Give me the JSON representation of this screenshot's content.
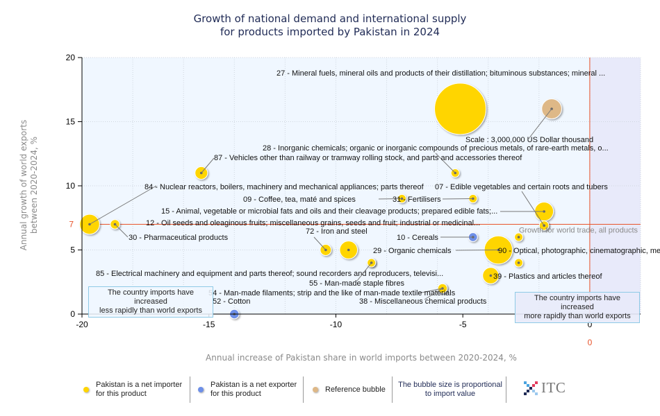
{
  "title_lines": [
    "Growth of national demand and international supply",
    "for products imported by Pakistan in 2024"
  ],
  "chart_data": {
    "type": "scatter",
    "subtype": "bubble",
    "title": "Growth of national demand and international supply for products imported by Pakistan in 2024",
    "xlabel": "Annual increase of Pakistan share in world imports between 2020-2024, %",
    "ylabel_lines": [
      "Annual growth of world exports",
      "between 2020-2024, %"
    ],
    "xlim": [
      -20,
      2
    ],
    "ylim": [
      0,
      20
    ],
    "xticks": [
      -20,
      -15,
      -10,
      -5,
      0
    ],
    "yticks": [
      0,
      5,
      10,
      15,
      20
    ],
    "grid": true,
    "reference_lines": {
      "x": {
        "value": 0,
        "label": "0",
        "color": "#e8532a"
      },
      "y": {
        "value": 7,
        "label": "7",
        "color": "#e8532a",
        "text": "Growth for world trade, all products"
      }
    },
    "colors": {
      "net_importer": "#ffd500",
      "net_exporter": "#6d8fe8",
      "reference": "#deb887",
      "ref_line": "#e8532a"
    },
    "scale_note": "Scale : 3,000,000 US Dollar thousand",
    "quadrant_notes": {
      "left": [
        "The country imports have increased",
        "less rapidly than world exports"
      ],
      "right": [
        "The country imports have increased",
        "more rapidly than world exports"
      ]
    },
    "bubbles": [
      {
        "code": "27",
        "label": "27 - Mineral fuels, mineral oils and products of their distillation; bituminous substances; mineral ...",
        "x": -5.1,
        "y": 16.0,
        "size": 3.0,
        "type": "net_importer"
      },
      {
        "code": "REF",
        "label": "Scale : 3,000,000 US Dollar thousand",
        "x": -1.5,
        "y": 16.0,
        "size": 0.45,
        "type": "reference"
      },
      {
        "code": "28",
        "label": "28 - Inorganic chemicals; organic or inorganic compounds of precious metals, of rare-earth metals, o...",
        "x": -5.3,
        "y": 11.0,
        "size": 0.06,
        "type": "net_importer"
      },
      {
        "code": "87",
        "label": "87 - Vehicles other than railway or tramway rolling stock, and parts and accessories thereof",
        "x": -15.3,
        "y": 11.0,
        "size": 0.18,
        "type": "net_importer"
      },
      {
        "code": "84",
        "label": "84 - Nuclear reactors, boilers, machinery and mechanical appliances; parts thereof",
        "x": -19.7,
        "y": 7.0,
        "size": 0.45,
        "type": "net_importer"
      },
      {
        "code": "07",
        "label": "07 - Edible vegetables and certain roots and tubers",
        "x": -1.8,
        "y": 6.9,
        "size": 0.1,
        "type": "net_importer"
      },
      {
        "code": "09",
        "label": "09 - Coffee, tea, maté and spices",
        "x": -7.4,
        "y": 9.0,
        "size": 0.08,
        "type": "net_importer"
      },
      {
        "code": "31",
        "label": "31 - Fertilisers",
        "x": -4.6,
        "y": 9.0,
        "size": 0.07,
        "type": "net_importer"
      },
      {
        "code": "15",
        "label": "15 - Animal, vegetable or microbial fats and oils and their cleavage products; prepared edible fats;...",
        "x": -1.8,
        "y": 8.0,
        "size": 0.4,
        "type": "net_importer"
      },
      {
        "code": "12",
        "label": "12 - Oil seeds and oleaginous fruits; miscellaneous grains, seeds and fruit; industrial or medicinal...",
        "x": -1.8,
        "y": 6.9,
        "size": 0.1,
        "type": "net_importer"
      },
      {
        "code": "30",
        "label": "30 - Pharmaceutical products",
        "x": -18.7,
        "y": 7.0,
        "size": 0.1,
        "type": "net_importer"
      },
      {
        "code": "72",
        "label": "72 - Iron and steel",
        "x": -10.4,
        "y": 5.0,
        "size": 0.14,
        "type": "net_importer"
      },
      {
        "code": "X1",
        "label": "",
        "x": -9.5,
        "y": 5.0,
        "size": 0.36,
        "type": "net_importer"
      },
      {
        "code": "10",
        "label": "10 - Cereals",
        "x": -4.6,
        "y": 6.0,
        "size": 0.09,
        "type": "net_exporter"
      },
      {
        "code": "29",
        "label": "29 - Organic chemicals",
        "x": -3.6,
        "y": 5.0,
        "size": 0.9,
        "type": "net_importer"
      },
      {
        "code": "90",
        "label": "90 - Optical, photographic, cinematographic, me",
        "x": -2.8,
        "y": 6.0,
        "size": 0.07,
        "type": "net_importer"
      },
      {
        "code": "X2",
        "label": "",
        "x": -2.8,
        "y": 4.0,
        "size": 0.07,
        "type": "net_importer"
      },
      {
        "code": "85",
        "label": "85 - Electrical machinery and equipment and parts thereof; sound recorders and reproducers, televisi...",
        "x": -8.6,
        "y": 4.0,
        "size": 0.06,
        "type": "net_importer"
      },
      {
        "code": "39",
        "label": "39 - Plastics and articles thereof",
        "x": -3.9,
        "y": 3.0,
        "size": 0.3,
        "type": "net_importer"
      },
      {
        "code": "55",
        "label": "55 - Man-made staple fibres",
        "x": -8.6,
        "y": 4.0,
        "size": 0.06,
        "type": "net_importer"
      },
      {
        "code": "54",
        "label": "54 - Man-made filaments; strip and the like of man-made textile materials",
        "x": -5.8,
        "y": 2.0,
        "size": 0.1,
        "type": "net_importer"
      },
      {
        "code": "38",
        "label": "38 - Miscellaneous chemical products",
        "x": -5.8,
        "y": 2.0,
        "size": 0.1,
        "type": "net_importer"
      },
      {
        "code": "52",
        "label": "52 - Cotton",
        "x": -14.0,
        "y": 0.0,
        "size": 0.1,
        "type": "net_exporter"
      }
    ]
  },
  "legend": {
    "items": [
      {
        "label_lines": [
          "Pakistan is a net importer",
          "for this product"
        ],
        "color": "#ffd500"
      },
      {
        "label_lines": [
          "Pakistan is a net exporter",
          "for this product"
        ],
        "color": "#6d8fe8"
      },
      {
        "label_lines": [
          "Reference bubble"
        ],
        "color": "#deb887"
      }
    ],
    "size_note_lines": [
      "The bubble size is proportional",
      "to import value"
    ],
    "logo_text": "ITC"
  }
}
